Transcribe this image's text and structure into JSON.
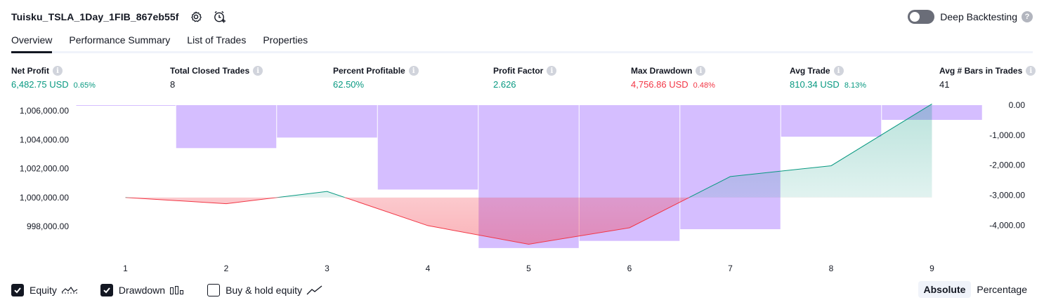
{
  "header": {
    "title": "Tuisku_TSLA_1Day_1FIB_867eb55f",
    "settings_icon": "gear-icon",
    "alert_icon": "add-alert-clock-icon"
  },
  "deep_backtesting": {
    "label": "Deep Backtesting",
    "enabled": false,
    "help": "?"
  },
  "tabs": [
    {
      "label": "Overview",
      "active": true
    },
    {
      "label": "Performance Summary",
      "active": false
    },
    {
      "label": "List of Trades",
      "active": false
    },
    {
      "label": "Properties",
      "active": false
    }
  ],
  "stats": [
    {
      "label": "Net Profit",
      "value": "6,482.75 USD",
      "sub": "0.65%",
      "color": "#089981"
    },
    {
      "label": "Total Closed Trades",
      "value": "8",
      "sub": "",
      "color": "#131722"
    },
    {
      "label": "Percent Profitable",
      "value": "62.50%",
      "sub": "",
      "color": "#089981"
    },
    {
      "label": "Profit Factor",
      "value": "2.626",
      "sub": "",
      "color": "#089981"
    },
    {
      "label": "Max Drawdown",
      "value": "4,756.86 USD",
      "sub": "0.48%",
      "color": "#f23645"
    },
    {
      "label": "Avg Trade",
      "value": "810.34 USD",
      "sub": "8.13%",
      "color": "#089981"
    },
    {
      "label": "Avg # Bars in Trades",
      "value": "41",
      "sub": "",
      "color": "#131722"
    }
  ],
  "chart_data": {
    "type": "line",
    "x": [
      1,
      2,
      3,
      4,
      5,
      6,
      7,
      8,
      9
    ],
    "equity": {
      "name": "Equity",
      "values": [
        1000000,
        999570,
        1000420,
        998050,
        996760,
        997900,
        1001450,
        1002200,
        1006483
      ],
      "axis": "left",
      "ylim": [
        996200,
        1006400
      ],
      "ticks": [
        "1,006,000.00",
        "1,004,000.00",
        "1,002,000.00",
        "1,000,000.00",
        "998,000.00"
      ],
      "tick_values": [
        1006000,
        1004000,
        1002000,
        1000000,
        998000
      ],
      "baseline": 1000000
    },
    "drawdown": {
      "name": "Drawdown",
      "values": [
        -10,
        -1430,
        -1080,
        -2810,
        -4757,
        -4520,
        -4130,
        -1050,
        -490
      ],
      "axis": "right",
      "ylim": [
        -4900,
        0
      ],
      "ticks": [
        "0.00",
        "-1,000.00",
        "-2,000.00",
        "-3,000.00",
        "-4,000.00"
      ],
      "tick_values": [
        0,
        -1000,
        -2000,
        -3000,
        -4000
      ]
    },
    "x_tick_labels": [
      "1",
      "2",
      "3",
      "4",
      "5",
      "6",
      "7",
      "8",
      "9"
    ],
    "colors": {
      "equity_up": "#089981",
      "equity_down": "#f23645",
      "drawdown": "#b388ff"
    },
    "grid": false
  },
  "legend": [
    {
      "label": "Equity",
      "checked": true,
      "icon": "equity-line-icon"
    },
    {
      "label": "Drawdown",
      "checked": true,
      "icon": "drawdown-bars-icon"
    },
    {
      "label": "Buy & hold equity",
      "checked": false,
      "icon": "buy-hold-line-icon"
    }
  ],
  "modes": [
    {
      "label": "Absolute",
      "active": true
    },
    {
      "label": "Percentage",
      "active": false
    }
  ]
}
